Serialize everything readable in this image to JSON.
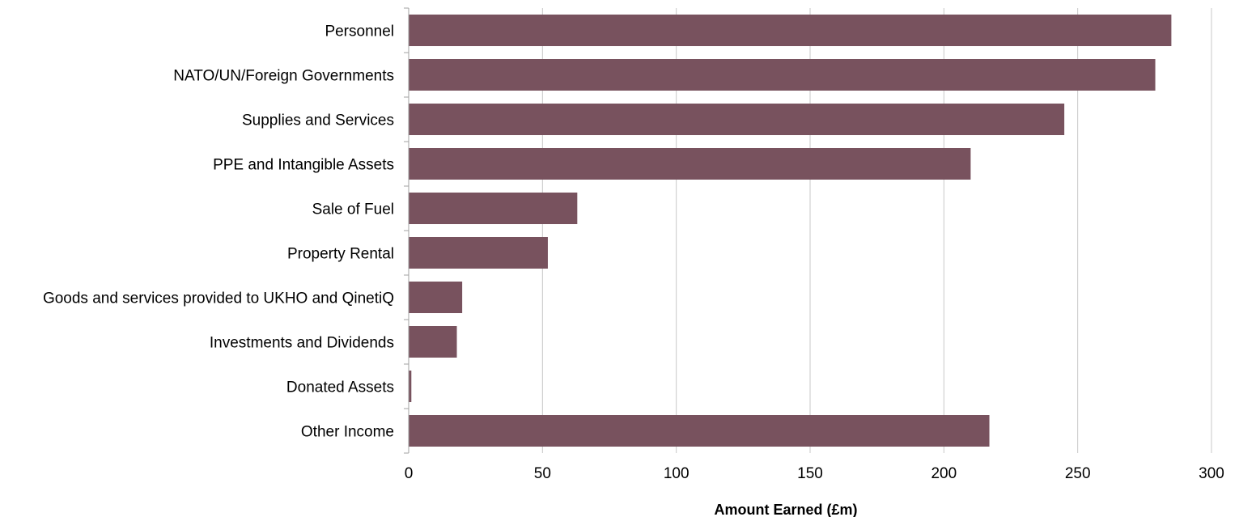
{
  "chart_data": {
    "type": "bar",
    "orientation": "horizontal",
    "categories": [
      "Personnel",
      "NATO/UN/Foreign Governments",
      "Supplies and Services",
      "PPE and Intangible Assets",
      "Sale of Fuel",
      "Property Rental",
      "Goods and services provided to UKHO and QinetiQ",
      "Investments and Dividends",
      "Donated Assets",
      "Other Income"
    ],
    "values": [
      285,
      279,
      245,
      210,
      63,
      52,
      20,
      18,
      1,
      217
    ],
    "xlabel": "Amount Earned (£m)",
    "ylabel": "",
    "xlim": [
      0,
      300
    ],
    "xticks": [
      "0",
      "50",
      "100",
      "150",
      "200",
      "250",
      "300"
    ],
    "grid": true,
    "legend": "none",
    "bar_color": "#78525e"
  }
}
